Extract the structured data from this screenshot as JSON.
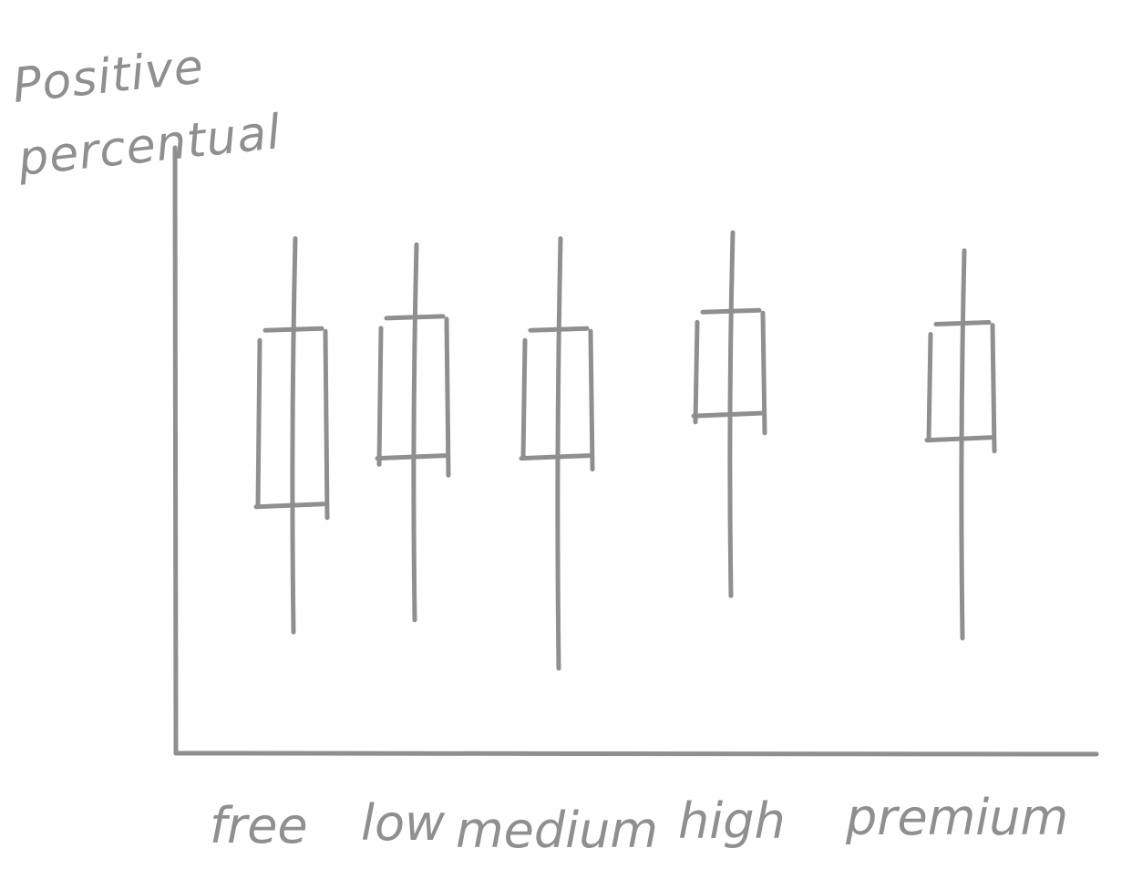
{
  "chart_data": {
    "type": "box",
    "ylabel_lines": [
      "Positive",
      "percentual"
    ],
    "xlabel": "",
    "categories": [
      "free",
      "low",
      "medium",
      "high",
      "premium"
    ],
    "series": [
      {
        "boxes": [
          {
            "category": "free",
            "whisker_low": 20,
            "q1": 41,
            "median": 41,
            "q3": 70,
            "whisker_high": 85
          },
          {
            "category": "low",
            "whisker_low": 22,
            "q1": 48,
            "median": 49,
            "q3": 72,
            "whisker_high": 84
          },
          {
            "category": "medium",
            "whisker_low": 14,
            "q1": 49,
            "median": 49,
            "q3": 70,
            "whisker_high": 85
          },
          {
            "category": "high",
            "whisker_low": 26,
            "q1": 55,
            "median": 56,
            "q3": 73,
            "whisker_high": 86
          },
          {
            "category": "premium",
            "whisker_low": 19,
            "q1": 52,
            "median": 52,
            "q3": 71,
            "whisker_high": 83
          }
        ]
      }
    ],
    "ylim": [
      0,
      100
    ],
    "grid": false,
    "legend": "none",
    "style": "hand-drawn sketch",
    "colors": {
      "ink": "#8f8f8f",
      "background": "#ffffff"
    }
  }
}
